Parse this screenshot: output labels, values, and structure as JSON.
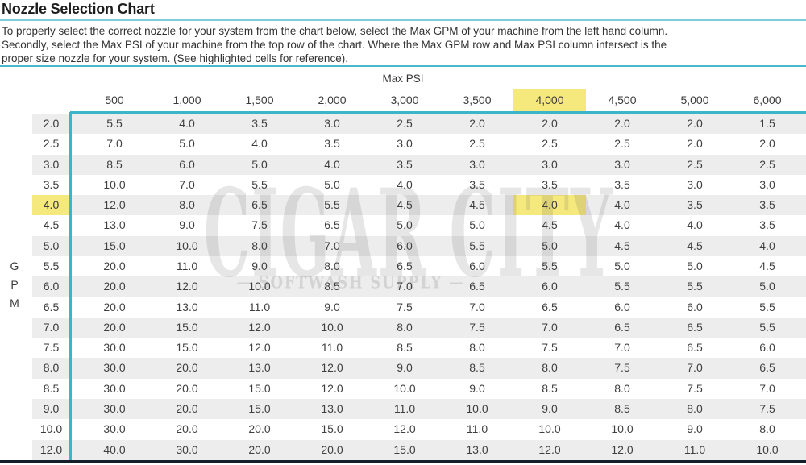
{
  "header": {
    "title": "Nozzle Selection Chart",
    "description_lines": [
      "To properly select the correct nozzle for your system from the chart below, select the Max GPM of your machine from the left hand column.",
      "Secondly, select the Max PSI of your machine from the top row of the chart. Where the Max GPM row and Max PSI column intersect is the",
      "proper size nozzle for your system. (See highlighted cells for reference)."
    ]
  },
  "watermark": {
    "line1": "CIGAR CITY",
    "line2": "— SOFTWASH SUPPLY —"
  },
  "colors": {
    "accent_cyan": "#3ab5c9",
    "light_rule_cyan": "#7fccdb",
    "highlight_yellow": "#f5e87c",
    "row_stripe_gray": "#ededed",
    "footer_bar_navy": "#141f2a"
  },
  "chart_data": {
    "type": "table",
    "title": "Nozzle Selection Chart",
    "column_group_label": "Max PSI",
    "row_group_label": "GPM",
    "columns": [
      "500",
      "1,000",
      "1,500",
      "2,000",
      "3,000",
      "3,500",
      "4,000",
      "4,500",
      "5,000",
      "6,000"
    ],
    "row_labels": [
      "2.0",
      "2.5",
      "3.0",
      "3.5",
      "4.0",
      "4.5",
      "5.0",
      "5.5",
      "6.0",
      "6.5",
      "7.0",
      "7.5",
      "8.0",
      "8.5",
      "9.0",
      "10.0",
      "12.0"
    ],
    "values": [
      [
        5.5,
        4.0,
        3.5,
        3.0,
        2.5,
        2.0,
        2.0,
        2.0,
        2.0,
        1.5
      ],
      [
        7.0,
        5.0,
        4.0,
        3.5,
        3.0,
        2.5,
        2.5,
        2.5,
        2.0,
        2.0
      ],
      [
        8.5,
        6.0,
        5.0,
        4.0,
        3.5,
        3.0,
        3.0,
        3.0,
        2.5,
        2.5
      ],
      [
        10.0,
        7.0,
        5.5,
        5.0,
        4.0,
        3.5,
        3.5,
        3.5,
        3.0,
        3.0
      ],
      [
        12.0,
        8.0,
        6.5,
        5.5,
        4.5,
        4.5,
        4.0,
        4.0,
        3.5,
        3.5
      ],
      [
        13.0,
        9.0,
        7.5,
        6.5,
        5.0,
        5.0,
        4.5,
        4.0,
        4.0,
        3.5
      ],
      [
        15.0,
        10.0,
        8.0,
        7.0,
        6.0,
        5.5,
        5.0,
        4.5,
        4.5,
        4.0
      ],
      [
        20.0,
        11.0,
        9.0,
        8.0,
        6.5,
        6.0,
        5.5,
        5.0,
        5.0,
        4.5
      ],
      [
        20.0,
        12.0,
        10.0,
        8.5,
        7.0,
        6.5,
        6.0,
        5.5,
        5.5,
        5.0
      ],
      [
        20.0,
        13.0,
        11.0,
        9.0,
        7.5,
        7.0,
        6.5,
        6.0,
        6.0,
        5.5
      ],
      [
        20.0,
        15.0,
        12.0,
        10.0,
        8.0,
        7.5,
        7.0,
        6.5,
        6.5,
        5.5
      ],
      [
        30.0,
        15.0,
        12.0,
        11.0,
        8.5,
        8.0,
        7.5,
        7.0,
        6.5,
        6.0
      ],
      [
        30.0,
        20.0,
        13.0,
        12.0,
        9.0,
        8.5,
        8.0,
        7.5,
        7.0,
        6.5
      ],
      [
        30.0,
        20.0,
        15.0,
        12.0,
        10.0,
        9.0,
        8.5,
        8.0,
        7.5,
        7.0
      ],
      [
        30.0,
        20.0,
        15.0,
        13.0,
        11.0,
        10.0,
        9.0,
        8.5,
        8.0,
        7.5
      ],
      [
        30.0,
        20.0,
        20.0,
        15.0,
        12.0,
        11.0,
        10.0,
        10.0,
        9.0,
        8.0
      ],
      [
        40.0,
        30.0,
        20.0,
        20.0,
        15.0,
        13.0,
        12.0,
        12.0,
        11.0,
        10.0
      ]
    ],
    "highlight": {
      "column_index": 6,
      "row_index": 4
    },
    "legend_position": "none",
    "grid": "row-stripes"
  }
}
